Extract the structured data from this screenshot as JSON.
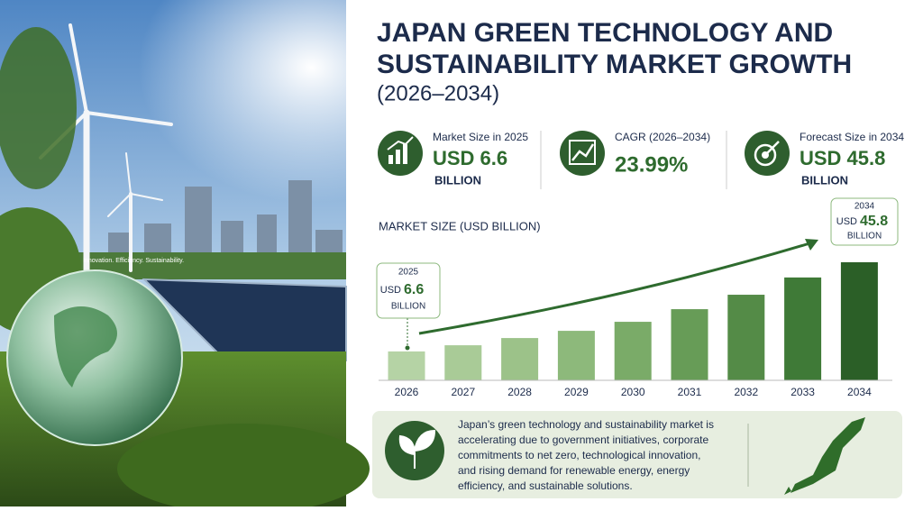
{
  "header": {
    "title": [
      "JAPAN GREEN TECHNOLOGY AND",
      "SUSTAINABILITY MARKET GROWTH"
    ],
    "subtitle": "(2026–2034)"
  },
  "photo_caption": "Innovation. Efficiency. Sustainability.",
  "kpis": [
    {
      "label": "Market Size in 2025",
      "value": "USD 6.6",
      "unit": "BILLION"
    },
    {
      "label": "CAGR (2026–2034)",
      "value": "23.99%"
    },
    {
      "label": "Forecast Size in 2034",
      "value": "USD 45.8",
      "unit": "BILLION"
    }
  ],
  "chart_data": {
    "type": "bar",
    "title": "MARKET SIZE (USD BILLION)",
    "categories": [
      "2026",
      "2027",
      "2028",
      "2029",
      "2030",
      "2031",
      "2032",
      "2033",
      "2034"
    ],
    "values": [
      11.2,
      13.6,
      16.4,
      19.2,
      22.7,
      27.6,
      33.2,
      39.9,
      45.8
    ],
    "colors": [
      "#b5d3a5",
      "#a9cb97",
      "#9cc289",
      "#8db97b",
      "#7aab68",
      "#679c57",
      "#548b47",
      "#3f7a37",
      "#2b5f27"
    ],
    "annotations": [
      {
        "year": "2025",
        "currency": "USD",
        "amount": "6.6",
        "unit": "BILLION"
      },
      {
        "year": "2034",
        "currency": "USD",
        "amount": "45.8",
        "unit": "BILLION"
      }
    ]
  },
  "description": [
    "Japan’s green technology and sustainability market is",
    "accelerating due to government initiatives, corporate",
    "commitments to net zero, technological innovation,",
    "and rising demand for renewable energy, energy",
    "efficiency, and sustainable solutions."
  ]
}
